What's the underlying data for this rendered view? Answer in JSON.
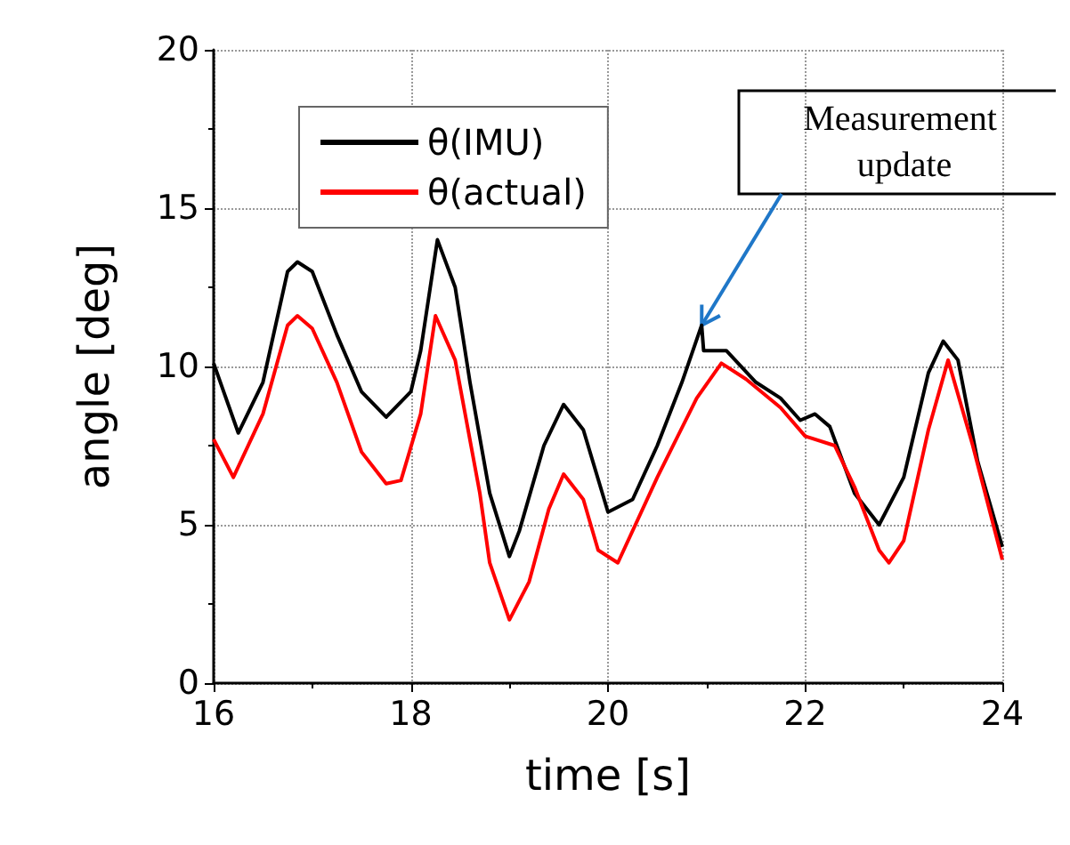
{
  "chart_data": {
    "type": "line",
    "xlabel": "time [s]",
    "ylabel": "angle [deg]",
    "xlim": [
      16,
      24
    ],
    "xticks": [
      16,
      18,
      20,
      22,
      24
    ],
    "ylim": [
      0,
      20
    ],
    "yticks": [
      0,
      5,
      10,
      15,
      20
    ],
    "grid": true,
    "legend": "top left",
    "marker": "none",
    "line_style": "solid",
    "annotations": [
      {
        "text": "Measurement update",
        "x": 20.95,
        "y": 11.3
      }
    ],
    "series": [
      {
        "name": "θ(IMU)",
        "color": "#000000",
        "x": [
          16,
          16.25,
          16.5,
          16.75,
          16.85,
          17,
          17.25,
          17.5,
          17.75,
          18,
          18.1,
          18.27,
          18.45,
          18.6,
          18.8,
          19,
          19.1,
          19.35,
          19.55,
          19.75,
          20,
          20.25,
          20.5,
          20.75,
          20.95,
          20.97,
          21.2,
          21.5,
          21.75,
          21.95,
          22.1,
          22.25,
          22.5,
          22.75,
          23,
          23.25,
          23.4,
          23.55,
          23.75,
          24
        ],
        "values": [
          10.1,
          7.9,
          9.5,
          13,
          13.3,
          13,
          11,
          9.2,
          8.4,
          9.2,
          10.5,
          14,
          12.5,
          9.5,
          6,
          4,
          4.8,
          7.5,
          8.8,
          8,
          5.4,
          5.8,
          7.5,
          9.5,
          11.3,
          10.5,
          10.5,
          9.5,
          9,
          8.3,
          8.5,
          8.1,
          6,
          5,
          6.5,
          9.8,
          10.8,
          10.2,
          7,
          4.3
        ]
      },
      {
        "name": "θ(actual)",
        "color": "#ff0000",
        "x": [
          16,
          16.2,
          16.5,
          16.75,
          16.85,
          17,
          17.25,
          17.5,
          17.75,
          17.9,
          18.1,
          18.25,
          18.45,
          18.7,
          18.8,
          19,
          19.2,
          19.4,
          19.55,
          19.75,
          19.9,
          20.1,
          20.5,
          20.9,
          21.15,
          21.4,
          21.75,
          22,
          22.3,
          22.5,
          22.75,
          22.85,
          23,
          23.25,
          23.45,
          23.7,
          24
        ],
        "values": [
          7.7,
          6.5,
          8.5,
          11.3,
          11.6,
          11.2,
          9.5,
          7.3,
          6.3,
          6.4,
          8.5,
          11.6,
          10.2,
          6,
          3.8,
          2,
          3.2,
          5.5,
          6.6,
          5.8,
          4.2,
          3.8,
          6.5,
          9,
          10.1,
          9.6,
          8.7,
          7.8,
          7.5,
          6.2,
          4.2,
          3.8,
          4.5,
          8,
          10.2,
          7.5,
          3.9
        ]
      }
    ]
  }
}
